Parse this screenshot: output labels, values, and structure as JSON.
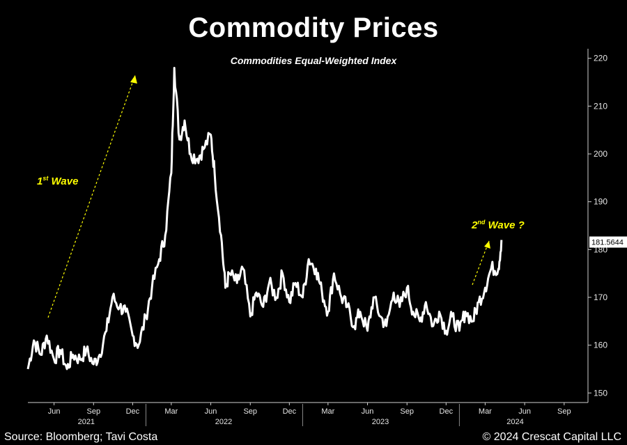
{
  "header": {
    "title": "Commodity Prices",
    "subtitle": "Commodities Equal-Weighted Index"
  },
  "footer": {
    "source": "Source: Bloomberg; Tavi Costa",
    "copyright": "© 2024 Crescat Capital LLC"
  },
  "annotations": {
    "wave1": {
      "num": "1",
      "sup": "st",
      "text": " Wave"
    },
    "wave2": {
      "num": "2",
      "sup": "nd",
      "text": " Wave ?"
    },
    "accent_color": "#ffff00"
  },
  "chart_data": {
    "type": "line",
    "title": "Commodity Prices",
    "subtitle": "Commodities Equal-Weighted Index",
    "ylim": [
      148,
      222
    ],
    "y_ticks": [
      150,
      160,
      170,
      180,
      190,
      200,
      210,
      220
    ],
    "last_value_label": "181.5644",
    "x_tick_labels": [
      "Jun",
      "Sep",
      "Dec",
      "Mar",
      "Jun",
      "Sep",
      "Dec",
      "Mar",
      "Jun",
      "Sep",
      "Dec",
      "Mar",
      "Jun",
      "Sep"
    ],
    "year_labels": [
      "2021",
      "2022",
      "2023",
      "2024"
    ],
    "grid": false,
    "line_color": "#ffffff",
    "series": [
      {
        "x": [
          "2021-04-01",
          "2021-04-15",
          "2021-05-01",
          "2021-05-15",
          "2021-06-01",
          "2021-06-15",
          "2021-07-01",
          "2021-07-15",
          "2021-08-01",
          "2021-08-15",
          "2021-09-01",
          "2021-09-15",
          "2021-10-01",
          "2021-10-15",
          "2021-11-01",
          "2021-11-15",
          "2021-12-01",
          "2021-12-15",
          "2022-01-01",
          "2022-01-15",
          "2022-02-01",
          "2022-02-15",
          "2022-03-01",
          "2022-03-08",
          "2022-03-20",
          "2022-04-01",
          "2022-04-15",
          "2022-05-01",
          "2022-05-15",
          "2022-06-01",
          "2022-06-10",
          "2022-06-25",
          "2022-07-05",
          "2022-07-15",
          "2022-08-01",
          "2022-08-15",
          "2022-09-01",
          "2022-09-15",
          "2022-10-01",
          "2022-10-15",
          "2022-11-01",
          "2022-11-15",
          "2022-12-01",
          "2022-12-15",
          "2023-01-01",
          "2023-01-15",
          "2023-02-01",
          "2023-02-15",
          "2023-03-01",
          "2023-03-15",
          "2023-04-01",
          "2023-04-15",
          "2023-05-01",
          "2023-05-15",
          "2023-06-01",
          "2023-06-15",
          "2023-07-01",
          "2023-07-15",
          "2023-08-01",
          "2023-08-15",
          "2023-09-01",
          "2023-09-15",
          "2023-10-01",
          "2023-10-15",
          "2023-11-01",
          "2023-11-15",
          "2023-12-01",
          "2023-12-15",
          "2024-01-01",
          "2024-01-15",
          "2024-02-01",
          "2024-02-15",
          "2024-03-01",
          "2024-03-15",
          "2024-04-01",
          "2024-04-08"
        ],
        "values": [
          155,
          161,
          158,
          162,
          157,
          159,
          155,
          158,
          157,
          159,
          156,
          158,
          163,
          170,
          168,
          167,
          162,
          160,
          166,
          172,
          178,
          183,
          196,
          218,
          203,
          207,
          200,
          199,
          201,
          204,
          196,
          183,
          172,
          175,
          173,
          176,
          166,
          171,
          168,
          173,
          170,
          175,
          169,
          173,
          170,
          178,
          176,
          171,
          167,
          175,
          170,
          168,
          164,
          167,
          163,
          170,
          166,
          164,
          171,
          168,
          172,
          167,
          165,
          169,
          164,
          167,
          163,
          166,
          163,
          167,
          165,
          169,
          172,
          176,
          176,
          182
        ]
      }
    ]
  }
}
